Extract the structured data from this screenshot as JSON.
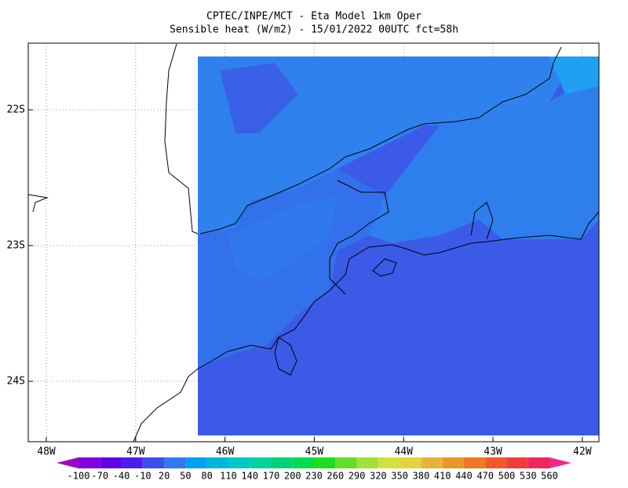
{
  "header": {
    "title": "CPTEC/INPE/MCT -  Eta Model 1km Oper",
    "subtitle": "Sensible heat (W/m2) - 15/01/2022 00UTC fct=58h"
  },
  "map": {
    "lat_labels": [
      "22S",
      "23S",
      "24S"
    ],
    "lon_labels": [
      "48W",
      "47W",
      "46W",
      "45W",
      "44W",
      "43W",
      "42W"
    ]
  },
  "colorbar": {
    "labels": [
      "-100",
      "-70",
      "-40",
      "-10",
      "20",
      "50",
      "80",
      "110",
      "140",
      "170",
      "200",
      "230",
      "260",
      "290",
      "320",
      "350",
      "380",
      "410",
      "440",
      "470",
      "500",
      "530",
      "560"
    ],
    "colors": [
      "#a000c8",
      "#8200dc",
      "#6400e6",
      "#4b1ef0",
      "#3c50f0",
      "#3278f0",
      "#00a0f0",
      "#00b4dc",
      "#00c8c8",
      "#00d2a0",
      "#00d278",
      "#00dc50",
      "#1edc1e",
      "#64dc28",
      "#a0e13c",
      "#d2e13c",
      "#e6d23c",
      "#e6b43c",
      "#eb9628",
      "#f07820",
      "#f05a28",
      "#f03c3c",
      "#f0285a",
      "#f0288c"
    ]
  }
}
